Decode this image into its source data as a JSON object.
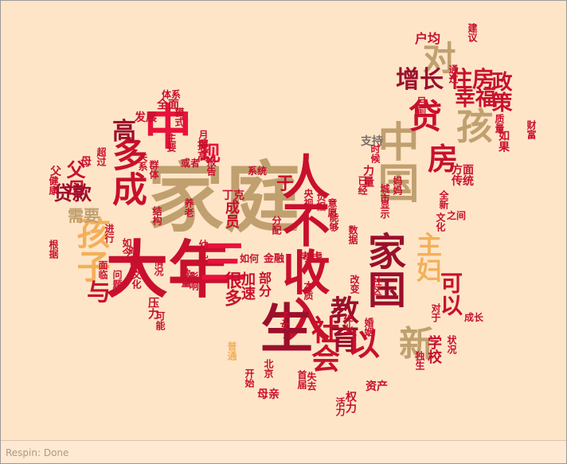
{
  "palette": {
    "bg": "#ffe5c8",
    "crimson": "#c8102e",
    "red": "#e8123c",
    "darkred": "#9b0f2c",
    "tan": "#c0a06f",
    "gold": "#f3b05a",
    "gray": "#7a6f6a",
    "dark": "#5a4a44"
  },
  "words": [
    {
      "text": "家庭",
      "color": "#c0a06f"
    },
    {
      "text": "大年",
      "color": "#c8102e"
    },
    {
      "text": "人不收入",
      "color": "#c8102e"
    },
    {
      "text": "中国",
      "color": "#c0a06f"
    },
    {
      "text": "家国",
      "color": "#9b0f2c"
    },
    {
      "text": "中",
      "color": "#e8123c"
    },
    {
      "text": "生",
      "color": "#9b0f2c"
    },
    {
      "text": "三",
      "color": "#e8123c"
    },
    {
      "text": "多成",
      "color": "#c8102e"
    },
    {
      "text": "孩子",
      "color": "#f3b05a"
    },
    {
      "text": "孩",
      "color": "#c0a06f"
    },
    {
      "text": "贷",
      "color": "#c8102e"
    },
    {
      "text": "对",
      "color": "#c0a06f"
    },
    {
      "text": "房",
      "color": "#c8102e"
    },
    {
      "text": "新",
      "color": "#c0a06f"
    },
    {
      "text": "社会",
      "color": "#c8102e"
    },
    {
      "text": "教育",
      "color": "#9b0f2c"
    },
    {
      "text": "以",
      "color": "#c8102e"
    },
    {
      "text": "主妇",
      "color": "#f3b05a"
    },
    {
      "text": "可以",
      "color": "#c8102e"
    },
    {
      "text": "增长",
      "color": "#9b0f2c"
    },
    {
      "text": "住房",
      "color": "#c8102e"
    },
    {
      "text": "幸福",
      "color": "#c8102e"
    },
    {
      "text": "政策",
      "color": "#c8102e"
    },
    {
      "text": "高",
      "color": "#9b0f2c"
    },
    {
      "text": "现",
      "color": "#e8123c"
    },
    {
      "text": "父母",
      "color": "#c8102e"
    },
    {
      "text": "贷款",
      "color": "#9b0f2c"
    },
    {
      "text": "需要",
      "color": "#c0a06f"
    },
    {
      "text": "与",
      "color": "#c8102e"
    },
    {
      "text": "很多",
      "color": "#c8102e"
    },
    {
      "text": "成员",
      "color": "#c8102e"
    },
    {
      "text": "于",
      "color": "#c8102e"
    },
    {
      "text": "加速",
      "color": "#c8102e"
    },
    {
      "text": "部分",
      "color": "#c8102e"
    },
    {
      "text": "学校",
      "color": "#c8102e"
    },
    {
      "text": "户均",
      "color": "#c8102e"
    },
    {
      "text": "发展",
      "color": "#c8102e"
    },
    {
      "text": "全面",
      "color": "#c8102e"
    },
    {
      "text": "提高",
      "color": "#c8102e"
    },
    {
      "text": "方面",
      "color": "#c8102e"
    },
    {
      "text": "传统",
      "color": "#c8102e"
    },
    {
      "text": "支持",
      "color": "#7a6f6a"
    },
    {
      "text": "母亲",
      "color": "#c8102e"
    },
    {
      "text": "资产",
      "color": "#c8102e"
    },
    {
      "text": "权力",
      "color": "#c8102e"
    },
    {
      "text": "如果",
      "color": "#c8102e"
    },
    {
      "text": "力量",
      "color": "#c8102e"
    },
    {
      "text": "城市",
      "color": "#c8102e"
    },
    {
      "text": "显示",
      "color": "#c8102e"
    },
    {
      "text": "系统",
      "color": "#c8102e"
    },
    {
      "text": "丁克",
      "color": "#c8102e"
    },
    {
      "text": "考虑",
      "color": "#c8102e"
    },
    {
      "text": "金融",
      "color": "#c8102e"
    },
    {
      "text": "如何",
      "color": "#c8102e"
    },
    {
      "text": "时代",
      "color": "#c8102e"
    },
    {
      "text": "压力",
      "color": "#c8102e"
    },
    {
      "text": "子女",
      "color": "#c8102e"
    },
    {
      "text": "普通",
      "color": "#f3b05a"
    },
    {
      "text": "成长",
      "color": "#c8102e"
    },
    {
      "text": "群体",
      "color": "#c8102e"
    },
    {
      "text": "模式",
      "color": "#c8102e"
    },
    {
      "text": "或者",
      "color": "#c8102e"
    },
    {
      "text": "报告",
      "color": "#c8102e"
    },
    {
      "text": "情况",
      "color": "#c8102e"
    },
    {
      "text": "问题",
      "color": "#c8102e"
    },
    {
      "text": "进行",
      "color": "#c8102e"
    },
    {
      "text": "作业",
      "color": "#c8102e"
    },
    {
      "text": "通过",
      "color": "#c8102e"
    },
    {
      "text": "之间",
      "color": "#c8102e"
    },
    {
      "text": "改变",
      "color": "#c8102e"
    },
    {
      "text": "数量",
      "color": "#c8102e"
    },
    {
      "text": "父",
      "color": "#c8102e"
    },
    {
      "text": "母",
      "color": "#c8102e"
    },
    {
      "text": "幼儿",
      "color": "#c8102e"
    },
    {
      "text": "文化",
      "color": "#c8102e"
    },
    {
      "text": "可能",
      "color": "#c8102e"
    },
    {
      "text": "健康",
      "color": "#c8102e"
    },
    {
      "text": "体系",
      "color": "#c8102e"
    },
    {
      "text": "对于",
      "color": "#c8102e"
    },
    {
      "text": "状况",
      "color": "#c8102e"
    },
    {
      "text": "开始",
      "color": "#c8102e"
    },
    {
      "text": "北京",
      "color": "#c8102e"
    },
    {
      "text": "时候",
      "color": "#c8102e"
    },
    {
      "text": "意愿",
      "color": "#c8102e"
    },
    {
      "text": "央视",
      "color": "#c8102e"
    },
    {
      "text": "首届",
      "color": "#c8102e"
    },
    {
      "text": "建议",
      "color": "#c8102e"
    },
    {
      "text": "能够",
      "color": "#c8102e"
    },
    {
      "text": "根据",
      "color": "#c8102e"
    },
    {
      "text": "超过",
      "color": "#c8102e"
    },
    {
      "text": "影响",
      "color": "#c8102e"
    },
    {
      "text": "负担",
      "color": "#c8102e"
    },
    {
      "text": "已经",
      "color": "#c8102e"
    },
    {
      "text": "面临",
      "color": "#c8102e"
    },
    {
      "text": "全新",
      "color": "#c8102e"
    },
    {
      "text": "活力",
      "color": "#c8102e"
    },
    {
      "text": "质量",
      "color": "#c8102e"
    },
    {
      "text": "月薪",
      "color": "#c8102e"
    },
    {
      "text": "失去",
      "color": "#c8102e"
    },
    {
      "text": "财富",
      "color": "#c8102e"
    },
    {
      "text": "妈妈",
      "color": "#c8102e"
    },
    {
      "text": "分配",
      "color": "#c8102e"
    },
    {
      "text": "独生",
      "color": "#c8102e"
    },
    {
      "text": "本质",
      "color": "#c8102e"
    },
    {
      "text": "养老",
      "color": "#c8102e"
    },
    {
      "text": "结构",
      "color": "#c8102e"
    },
    {
      "text": "社区",
      "color": "#c8102e"
    },
    {
      "text": "主要",
      "color": "#c8102e"
    },
    {
      "text": "如今",
      "color": "#c8102e"
    },
    {
      "text": "目前",
      "color": "#c8102e"
    },
    {
      "text": "文化",
      "color": "#c8102e"
    },
    {
      "text": "数据",
      "color": "#c8102e"
    },
    {
      "text": "婚姻",
      "color": "#c8102e"
    },
    {
      "text": "关系",
      "color": "#c8102e"
    }
  ],
  "status": {
    "text": "Respin: Done"
  }
}
